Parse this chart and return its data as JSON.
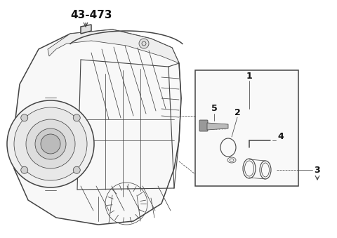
{
  "bg_color": "#ffffff",
  "line_color": "#444444",
  "lw_main": 1.1,
  "lw_thin": 0.55,
  "lw_med": 0.8,
  "fig_width": 4.8,
  "fig_height": 3.39,
  "dpi": 100,
  "part_number": "43-473",
  "label_color": "#111111",
  "label_fontsize": 9,
  "pn_fontsize": 11
}
